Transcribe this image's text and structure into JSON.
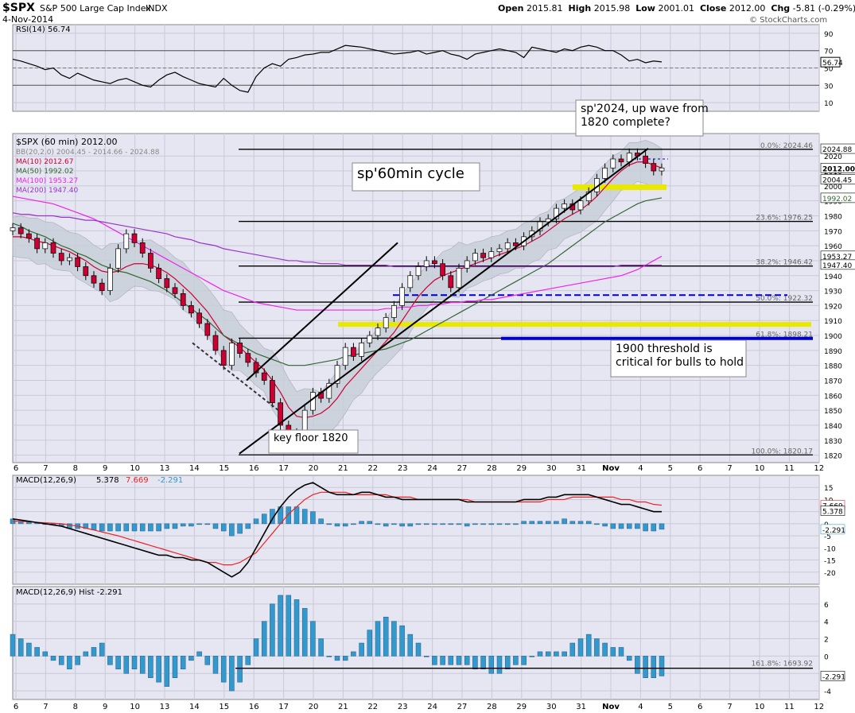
{
  "header": {
    "symbol": "$SPX",
    "name": "S&P 500 Large Cap Index",
    "exchange": "INDX",
    "date": "4-Nov-2014",
    "open_label": "Open",
    "open": "2015.81",
    "high_label": "High",
    "high": "2015.98",
    "low_label": "Low",
    "low": "2001.01",
    "close_label": "Close",
    "close": "2012.00",
    "chg_label": "Chg",
    "chg": "-5.81 (-0.29%)",
    "watermark": "© StockCharts.com"
  },
  "colors": {
    "panel_bg": "#e6e6f2",
    "grid": "#c8c8d8",
    "up_candle": "#ffffff",
    "down_candle": "#cc0033",
    "bb_band": "#c8cfd8",
    "ma10": "#cc0033",
    "ma50": "#336633",
    "ma100": "#ee22ee",
    "ma200": "#9933cc",
    "macd_line": "#000000",
    "signal_line": "#ee2222",
    "histogram": "#3399cc",
    "yellow_zone": "#e8e800",
    "blue_line": "#0000cc"
  },
  "chart_data": [
    {
      "type": "line",
      "panel": "rsi",
      "legend": "RSI(14) 56.74",
      "current": "56.74",
      "y_ticks": [
        "90",
        "70",
        "50",
        "30",
        "10"
      ],
      "ylim": [
        0,
        100
      ],
      "overbought": 70,
      "oversold": 30,
      "values": [
        60,
        58,
        55,
        52,
        48,
        50,
        42,
        38,
        44,
        40,
        36,
        34,
        32,
        36,
        38,
        34,
        30,
        28,
        36,
        42,
        45,
        40,
        36,
        32,
        30,
        28,
        38,
        30,
        24,
        22,
        40,
        50,
        55,
        52,
        60,
        62,
        65,
        66,
        68,
        68,
        72,
        76,
        75,
        74,
        72,
        70,
        68,
        66,
        67,
        68,
        70,
        66,
        68,
        70,
        66,
        64,
        60,
        66,
        68,
        70,
        72,
        70,
        68,
        62,
        74,
        72,
        70,
        68,
        72,
        70,
        74,
        76,
        74,
        70,
        70,
        65,
        58,
        60,
        56,
        58,
        57
      ]
    },
    {
      "type": "candlestick",
      "panel": "price",
      "legend": [
        {
          "text": "$SPX (60 min) 2012.00",
          "color": "#000000"
        },
        {
          "text": "BB(20,2.0) 2004.45 - 2014.66 - 2024.88",
          "color": "#888888"
        },
        {
          "text": "MA(10) 2012.67",
          "color": "#cc0033"
        },
        {
          "text": "MA(50) 1992.02",
          "color": "#336633"
        },
        {
          "text": "MA(100) 1953.27",
          "color": "#ee22ee"
        },
        {
          "text": "MA(200) 1947.40",
          "color": "#9933cc"
        }
      ],
      "ylim": [
        1815,
        2035
      ],
      "y_ticks": [
        "2020",
        "2010",
        "2000",
        "1990",
        "1980",
        "1970",
        "1960",
        "1950",
        "1940",
        "1930",
        "1920",
        "1910",
        "1900",
        "1890",
        "1880",
        "1870",
        "1860",
        "1850",
        "1840",
        "1830",
        "1820"
      ],
      "y_tick_values": [
        2020,
        2010,
        2000,
        1990,
        1980,
        1970,
        1960,
        1950,
        1940,
        1930,
        1920,
        1910,
        1900,
        1890,
        1880,
        1870,
        1860,
        1850,
        1840,
        1830,
        1820
      ],
      "right_labels": [
        {
          "text": "2024.88",
          "value": 2024.88,
          "bg": "#ffffff",
          "fg": "#000000"
        },
        {
          "text": "2012.00",
          "value": 2012.0,
          "bg": "#ffffff",
          "fg": "#000000",
          "bold": true
        },
        {
          "text": "2004.45",
          "value": 2004.45,
          "bg": "#ffffff",
          "fg": "#000000"
        },
        {
          "text": "1992.02",
          "value": 1992.02,
          "bg": "#ffffff",
          "fg": "#336633"
        },
        {
          "text": "1953.27",
          "value": 1953.27,
          "bg": "#ffffff",
          "fg": "#000000"
        },
        {
          "text": "1947.40",
          "value": 1947.4,
          "bg": "#ffffff",
          "fg": "#000000"
        }
      ],
      "x_labels": [
        "6",
        "7",
        "8",
        "9",
        "10",
        "13",
        "14",
        "15",
        "16",
        "17",
        "20",
        "21",
        "22",
        "23",
        "24",
        "27",
        "28",
        "29",
        "30",
        "31",
        "Nov",
        "4",
        "5",
        "6",
        "7",
        "10",
        "11",
        "12"
      ],
      "fib_levels": [
        {
          "label": "0.0%: 2024.46",
          "value": 2024.46
        },
        {
          "label": "23.6%: 1976.25",
          "value": 1976.25
        },
        {
          "label": "38.2%: 1946.42",
          "value": 1946.42
        },
        {
          "label": "50.0%: 1922.32",
          "value": 1922.32
        },
        {
          "label": "61.8%: 1898.21",
          "value": 1898.21
        },
        {
          "label": "100.0%: 1820.17",
          "value": 1820.17
        }
      ],
      "annotations": [
        {
          "text": "sp'2024, up wave from",
          "text2": "1820 complete?"
        },
        {
          "text": "sp'60min cycle"
        },
        {
          "text": "1900 threshold is",
          "text2": "critical for bulls to hold"
        },
        {
          "text": "key floor 1820"
        }
      ],
      "close": [
        1972,
        1968,
        1965,
        1958,
        1962,
        1955,
        1950,
        1952,
        1946,
        1940,
        1935,
        1930,
        1945,
        1958,
        1968,
        1962,
        1955,
        1945,
        1938,
        1932,
        1928,
        1920,
        1915,
        1908,
        1900,
        1890,
        1880,
        1895,
        1888,
        1882,
        1875,
        1870,
        1855,
        1840,
        1826,
        1835,
        1850,
        1862,
        1858,
        1868,
        1880,
        1892,
        1886,
        1895,
        1900,
        1905,
        1912,
        1920,
        1932,
        1940,
        1946,
        1950,
        1948,
        1940,
        1932,
        1945,
        1950,
        1955,
        1952,
        1956,
        1958,
        1962,
        1960,
        1966,
        1970,
        1976,
        1978,
        1985,
        1988,
        1984,
        1990,
        1996,
        2005,
        2012,
        2018,
        2016,
        2022,
        2020,
        2015,
        2010,
        2012
      ],
      "open": [
        1970,
        1972,
        1968,
        1965,
        1958,
        1962,
        1955,
        1950,
        1952,
        1946,
        1940,
        1935,
        1930,
        1945,
        1958,
        1968,
        1962,
        1955,
        1945,
        1938,
        1932,
        1928,
        1920,
        1915,
        1908,
        1900,
        1890,
        1880,
        1895,
        1888,
        1882,
        1875,
        1870,
        1855,
        1840,
        1826,
        1835,
        1850,
        1862,
        1858,
        1868,
        1880,
        1892,
        1886,
        1895,
        1900,
        1905,
        1912,
        1920,
        1932,
        1940,
        1946,
        1950,
        1948,
        1940,
        1932,
        1945,
        1950,
        1955,
        1952,
        1956,
        1958,
        1962,
        1960,
        1966,
        1970,
        1976,
        1978,
        1985,
        1988,
        1984,
        1990,
        1996,
        2005,
        2012,
        2018,
        2016,
        2022,
        2020,
        2015,
        2010
      ],
      "ma10": [
        1966,
        1966,
        1965,
        1963,
        1962,
        1960,
        1958,
        1956,
        1953,
        1950,
        1946,
        1943,
        1942,
        1943,
        1946,
        1948,
        1948,
        1947,
        1945,
        1942,
        1938,
        1933,
        1928,
        1922,
        1916,
        1908,
        1900,
        1896,
        1892,
        1887,
        1882,
        1877,
        1870,
        1862,
        1852,
        1846,
        1845,
        1846,
        1848,
        1852,
        1858,
        1866,
        1872,
        1878,
        1884,
        1890,
        1896,
        1902,
        1910,
        1918,
        1926,
        1932,
        1937,
        1940,
        1942,
        1944,
        1946,
        1948,
        1950,
        1952,
        1954,
        1956,
        1958,
        1960,
        1963,
        1966,
        1970,
        1974,
        1978,
        1981,
        1984,
        1988,
        1993,
        1999,
        2005,
        2010,
        2014,
        2016,
        2016,
        2014,
        2012
      ],
      "ma50": [
        1975,
        1973,
        1970,
        1968,
        1966,
        1963,
        1960,
        1958,
        1955,
        1953,
        1950,
        1947,
        1945,
        1943,
        1942,
        1940,
        1938,
        1936,
        1933,
        1930,
        1926,
        1922,
        1918,
        1914,
        1910,
        1905,
        1900,
        1897,
        1894,
        1891,
        1888,
        1886,
        1884,
        1882,
        1880,
        1880,
        1880,
        1881,
        1882,
        1883,
        1884,
        1886,
        1887,
        1888,
        1889,
        1890,
        1891,
        1893,
        1895,
        1897,
        1900,
        1903,
        1906,
        1909,
        1912,
        1915,
        1918,
        1921,
        1924,
        1927,
        1930,
        1933,
        1936,
        1939,
        1942,
        1945,
        1948,
        1952,
        1956,
        1960,
        1964,
        1968,
        1972,
        1976,
        1979,
        1982,
        1985,
        1988,
        1990,
        1991,
        1992
      ],
      "ma100": [
        1993,
        1992,
        1991,
        1990,
        1989,
        1988,
        1986,
        1984,
        1982,
        1980,
        1978,
        1975,
        1972,
        1969,
        1966,
        1963,
        1960,
        1957,
        1954,
        1951,
        1948,
        1945,
        1942,
        1939,
        1936,
        1933,
        1930,
        1928,
        1926,
        1924,
        1922,
        1921,
        1920,
        1919,
        1918,
        1917,
        1917,
        1917,
        1917,
        1917,
        1917,
        1917,
        1917,
        1917,
        1917,
        1917,
        1918,
        1918,
        1919,
        1919,
        1920,
        1920,
        1921,
        1921,
        1922,
        1922,
        1923,
        1923,
        1924,
        1924,
        1925,
        1926,
        1927,
        1928,
        1929,
        1930,
        1931,
        1932,
        1933,
        1934,
        1935,
        1936,
        1937,
        1938,
        1939,
        1940,
        1942,
        1944,
        1947,
        1950,
        1953
      ],
      "ma200": [
        1982,
        1981,
        1981,
        1980,
        1980,
        1980,
        1979,
        1979,
        1978,
        1977,
        1977,
        1976,
        1975,
        1974,
        1973,
        1972,
        1971,
        1970,
        1969,
        1968,
        1966,
        1965,
        1964,
        1962,
        1961,
        1960,
        1958,
        1957,
        1956,
        1955,
        1954,
        1953,
        1952,
        1951,
        1950,
        1950,
        1949,
        1949,
        1948,
        1948,
        1948,
        1947,
        1947,
        1947,
        1947,
        1947,
        1947,
        1946,
        1946,
        1946,
        1946,
        1946,
        1946,
        1946,
        1946,
        1946,
        1946,
        1946,
        1946,
        1946,
        1946,
        1946,
        1946,
        1946,
        1946,
        1946,
        1946,
        1946,
        1946,
        1946,
        1946,
        1946,
        1946,
        1946,
        1946,
        1947,
        1947,
        1947,
        1947,
        1947,
        1947
      ]
    },
    {
      "type": "line",
      "panel": "macd",
      "legend_label": "MACD(12,26,9) ",
      "legend_macd": "5.378",
      "legend_signal": "7.669",
      "legend_hist": "-2.291",
      "ylim": [
        -25,
        20
      ],
      "y_ticks": [
        "15",
        "10",
        "5",
        "0",
        "-5",
        "-10",
        "-15",
        "-20"
      ],
      "y_tick_values": [
        15,
        10,
        5,
        0,
        -5,
        -10,
        -15,
        -20
      ],
      "right_labels": [
        "7.669",
        "5.378",
        "-2.291"
      ],
      "macd": [
        2,
        1.5,
        1,
        0.5,
        0,
        -0.5,
        -1,
        -2,
        -3,
        -4,
        -5,
        -6,
        -7,
        -8,
        -9,
        -10,
        -11,
        -12,
        -13,
        -13,
        -14,
        -14,
        -15,
        -15,
        -16,
        -18,
        -20,
        -22,
        -20,
        -16,
        -10,
        -4,
        2,
        7,
        11,
        14,
        16,
        17,
        15,
        13,
        12,
        12,
        12,
        13,
        13,
        12,
        11,
        11,
        10,
        10,
        10,
        10,
        10,
        10,
        10,
        10,
        9,
        9,
        9,
        9,
        9,
        9,
        9,
        10,
        10,
        10,
        11,
        11,
        12,
        12,
        12,
        12,
        11,
        10,
        9,
        8,
        8,
        7,
        6,
        5,
        5
      ],
      "signal": [
        1,
        1,
        0.8,
        0.6,
        0.4,
        0.2,
        0,
        -0.5,
        -1,
        -1.8,
        -2.6,
        -3.4,
        -4.2,
        -5,
        -6,
        -7,
        -8,
        -9,
        -10,
        -11,
        -12,
        -13,
        -14,
        -15,
        -16,
        -16,
        -17,
        -17,
        -16,
        -14,
        -12,
        -8,
        -4,
        0,
        4,
        7,
        10,
        12,
        13,
        13,
        13,
        13,
        12,
        12,
        12,
        12,
        12,
        11,
        11,
        11,
        10,
        10,
        10,
        10,
        10,
        10,
        10,
        9,
        9,
        9,
        9,
        9,
        9,
        9,
        9,
        9,
        10,
        10,
        10,
        11,
        11,
        11,
        11,
        11,
        11,
        10,
        10,
        9,
        9,
        8,
        7.669
      ],
      "hist": [
        2,
        1,
        1,
        0.5,
        0,
        -0.5,
        -1,
        -2,
        -2,
        -2,
        -2.5,
        -3,
        -3,
        -3,
        -3,
        -3,
        -3,
        -3,
        -3,
        -2,
        -2,
        -1,
        -1,
        0,
        0,
        -2,
        -3,
        -5,
        -4,
        -2,
        2,
        4,
        6,
        7,
        7,
        7,
        6,
        5,
        2,
        0,
        -1,
        -1,
        0,
        1,
        1,
        0,
        -1,
        0,
        -1,
        -1,
        0,
        0,
        0,
        0,
        0,
        0,
        -1,
        0,
        0,
        0,
        0,
        0,
        0,
        1,
        1,
        1,
        1,
        1,
        2,
        1,
        1,
        1,
        0,
        -1,
        -2,
        -2,
        -2,
        -2,
        -3,
        -3,
        -2.291
      ]
    },
    {
      "type": "bar",
      "panel": "hist",
      "legend": "MACD(12,26,9) Hist -2.291",
      "current": "-2.291",
      "fib_label": "161.8%: 1693.92",
      "ylim": [
        -5,
        8
      ],
      "y_ticks": [
        "6",
        "4",
        "2",
        "0",
        "-2",
        "-4"
      ],
      "y_tick_values": [
        6,
        4,
        2,
        0,
        -2,
        -4
      ],
      "x_labels": [
        "6",
        "7",
        "8",
        "9",
        "10",
        "13",
        "14",
        "15",
        "16",
        "17",
        "20",
        "21",
        "22",
        "23",
        "24",
        "27",
        "28",
        "29",
        "30",
        "31",
        "Nov",
        "4",
        "5",
        "6",
        "7",
        "10",
        "11",
        "12"
      ],
      "values": [
        2.5,
        2,
        1.5,
        1,
        0.5,
        -0.5,
        -1,
        -1.5,
        -1,
        0.5,
        1,
        1.5,
        -1,
        -1.5,
        -2,
        -1.5,
        -2,
        -2.5,
        -3,
        -3.5,
        -2.5,
        -1.5,
        -0.5,
        0.5,
        -1,
        -2,
        -3,
        -4,
        -3,
        -1,
        2,
        4,
        6,
        7,
        7,
        6.5,
        5.5,
        4,
        2,
        0,
        -0.5,
        -0.5,
        0.5,
        1.5,
        3,
        4,
        4.5,
        4,
        3.5,
        2.5,
        1.5,
        0,
        -1,
        -1,
        -1,
        -1,
        -1,
        -1.5,
        -1.5,
        -2,
        -2,
        -1.5,
        -1,
        -1,
        0,
        0.5,
        0.5,
        0.5,
        0.5,
        1.5,
        2,
        2.5,
        2,
        1.5,
        1,
        1,
        -0.5,
        -2,
        -2.5,
        -2.5,
        -2.291
      ]
    }
  ]
}
